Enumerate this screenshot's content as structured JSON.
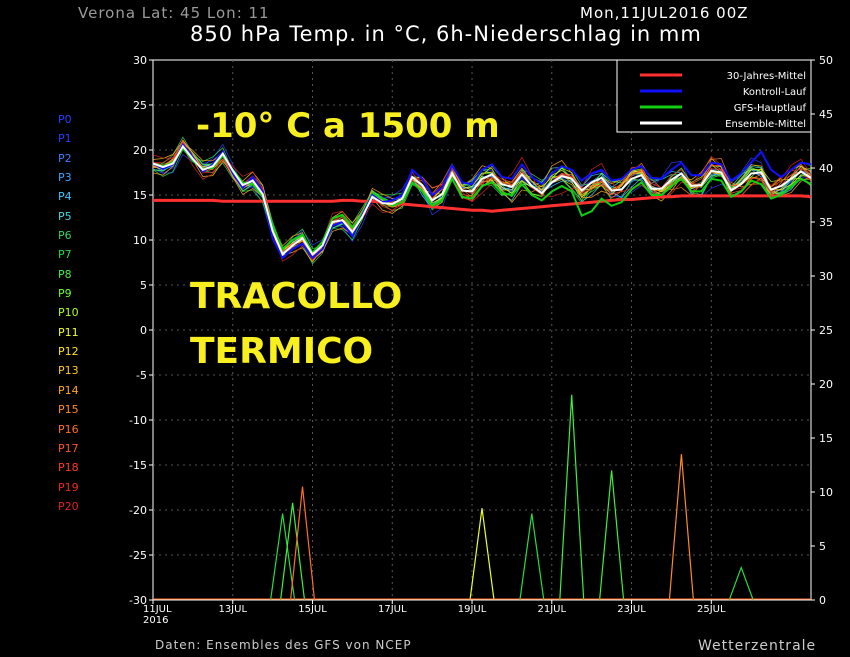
{
  "header": {
    "location": "Verona   Lat: 45 Lon: 11",
    "run": "Mon,11JUL2016 00Z",
    "title": "850 hPa Temp. in °C, 6h-Niederschlag in mm"
  },
  "footer": {
    "source": "Daten: Ensembles des GFS von NCEP",
    "credit": "Wetterzentrale"
  },
  "annotations": {
    "headline": "-10° C a 1500 m",
    "line1": "TRACOLLO",
    "line2": "TERMICO"
  },
  "members": [
    {
      "label": "P0",
      "color": "#2b3cff"
    },
    {
      "label": "P1",
      "color": "#2b3cff"
    },
    {
      "label": "P2",
      "color": "#3a7cff"
    },
    {
      "label": "P3",
      "color": "#3aa4ff"
    },
    {
      "label": "P4",
      "color": "#3ac8ff"
    },
    {
      "label": "P5",
      "color": "#49d7e0"
    },
    {
      "label": "P6",
      "color": "#32d26a"
    },
    {
      "label": "P7",
      "color": "#22dd44"
    },
    {
      "label": "P8",
      "color": "#3cf03c"
    },
    {
      "label": "P9",
      "color": "#66ff22"
    },
    {
      "label": "P10",
      "color": "#aaff22"
    },
    {
      "label": "P11",
      "color": "#eeff22"
    },
    {
      "label": "P12",
      "color": "#ffe022"
    },
    {
      "label": "P13",
      "color": "#ffc822"
    },
    {
      "label": "P14",
      "color": "#ffa822"
    },
    {
      "label": "P15",
      "color": "#ff8a22"
    },
    {
      "label": "P16",
      "color": "#ff6e22"
    },
    {
      "label": "P17",
      "color": "#ff5522"
    },
    {
      "label": "P18",
      "color": "#ff3a22"
    },
    {
      "label": "P19",
      "color": "#ee2a22"
    },
    {
      "label": "P20",
      "color": "#dd2222"
    }
  ],
  "chart_data": {
    "type": "line",
    "x_ticks": [
      "11JUL\n2016",
      "13JUL",
      "15JUL",
      "17JUL",
      "19JUL",
      "21JUL",
      "23JUL",
      "25JUL"
    ],
    "x_range_days": [
      0,
      16.5
    ],
    "left_axis": {
      "ylim": [
        -30,
        30
      ],
      "ticks": [
        30,
        25,
        20,
        15,
        10,
        5,
        0,
        -5,
        -10,
        -15,
        -20,
        -25,
        -30
      ]
    },
    "right_axis": {
      "ylim": [
        0,
        50
      ],
      "ticks": [
        50,
        45,
        40,
        35,
        30,
        25,
        20,
        15,
        10,
        5,
        0
      ]
    },
    "legend": [
      {
        "name": "30-Jahres-Mittel",
        "color": "#ff3030"
      },
      {
        "name": "Kontroll-Lauf",
        "color": "#1010ff"
      },
      {
        "name": "GFS-Hauptlauf",
        "color": "#10d010"
      },
      {
        "name": "Ensemble-Mittel",
        "color": "#ffffff"
      }
    ],
    "legend_position": "top-right",
    "series": [
      {
        "name": "30-Jahres-Mittel",
        "values": [
          14.4,
          14.4,
          14.4,
          14.4,
          14.4,
          14.4,
          14.4,
          14.3,
          14.3,
          14.3,
          14.3,
          14.3,
          14.3,
          14.3,
          14.3,
          14.3,
          14.3,
          14.3,
          14.3,
          14.4,
          14.4,
          14.3,
          14.3,
          14.2,
          14.1,
          14.0,
          13.9,
          13.8,
          13.7,
          13.6,
          13.5,
          13.4,
          13.3,
          13.3,
          13.2,
          13.3,
          13.4,
          13.5,
          13.6,
          13.7,
          13.8,
          13.9,
          14.0,
          14.1,
          14.2,
          14.3,
          14.4,
          14.5,
          14.5,
          14.6,
          14.7,
          14.8,
          14.8,
          14.9,
          14.9,
          14.9,
          14.9,
          14.9,
          14.9,
          14.9,
          14.9,
          14.9,
          14.9,
          14.9,
          14.9,
          14.9,
          14.8
        ]
      },
      {
        "name": "Ensemble-Mittel",
        "values": [
          18.5,
          18.1,
          18.5,
          20.4,
          19.0,
          17.8,
          18.2,
          19.6,
          17.7,
          16.1,
          16.6,
          15.1,
          11.0,
          8.4,
          9.4,
          10.2,
          8.4,
          9.4,
          12.0,
          12.2,
          10.9,
          12.6,
          14.8,
          14.1,
          14.0,
          14.6,
          17.0,
          16.1,
          14.4,
          15.1,
          17.4,
          15.5,
          15.4,
          16.8,
          17.3,
          16.2,
          15.9,
          17.3,
          16.0,
          15.2,
          16.4,
          17.1,
          16.8,
          15.5,
          16.4,
          16.9,
          15.5,
          15.6,
          16.8,
          17.2,
          15.7,
          15.7,
          16.7,
          17.4,
          16.0,
          16.1,
          17.7,
          17.5,
          15.5,
          16.2,
          17.4,
          17.5,
          15.6,
          16.0,
          16.8,
          17.6,
          16.9
        ]
      },
      {
        "name": "Kontroll-Lauf",
        "values": [
          18.5,
          17.9,
          18.4,
          20.6,
          19.2,
          17.6,
          18.4,
          19.8,
          17.4,
          15.8,
          17.0,
          15.4,
          10.2,
          8.0,
          9.0,
          9.6,
          8.0,
          9.0,
          11.6,
          12.0,
          10.4,
          12.8,
          15.0,
          14.2,
          14.4,
          15.0,
          17.8,
          16.8,
          15.0,
          15.8,
          18.3,
          16.4,
          16.2,
          17.8,
          18.4,
          17.0,
          16.8,
          18.4,
          17.0,
          16.2,
          17.4,
          18.2,
          17.8,
          16.6,
          17.4,
          17.8,
          16.6,
          16.8,
          17.8,
          18.2,
          16.9,
          16.8,
          17.8,
          18.6,
          17.2,
          17.2,
          18.6,
          18.4,
          16.6,
          17.4,
          18.6,
          19.8,
          17.8,
          17.0,
          17.8,
          18.6,
          18.4
        ]
      },
      {
        "name": "GFS-Hauptlauf",
        "values": [
          18.5,
          18.2,
          18.6,
          20.2,
          18.8,
          17.9,
          18.0,
          19.4,
          17.8,
          16.4,
          16.2,
          14.8,
          11.6,
          9.0,
          10.0,
          10.6,
          8.6,
          9.8,
          12.4,
          12.8,
          11.4,
          13.0,
          15.2,
          14.6,
          13.8,
          14.2,
          16.4,
          15.4,
          13.8,
          14.4,
          16.8,
          14.8,
          14.6,
          16.0,
          16.4,
          15.2,
          15.0,
          16.2,
          15.0,
          14.4,
          15.4,
          16.0,
          15.4,
          12.7,
          13.2,
          14.6,
          13.8,
          14.2,
          15.6,
          16.4,
          15.0,
          15.0,
          16.0,
          16.8,
          15.4,
          15.4,
          16.8,
          16.6,
          14.8,
          15.4,
          16.6,
          16.2,
          14.6,
          15.0,
          16.0,
          16.8,
          16.2
        ]
      }
    ],
    "precip_right_axis_peaks": [
      {
        "time_days": 3.25,
        "value": 8
      },
      {
        "time_days": 3.5,
        "value": 9
      },
      {
        "time_days": 3.75,
        "value": 10.5
      },
      {
        "time_days": 8.25,
        "value": 8.5
      },
      {
        "time_days": 9.5,
        "value": 8
      },
      {
        "time_days": 10.5,
        "value": 19
      },
      {
        "time_days": 11.5,
        "value": 12
      },
      {
        "time_days": 13.25,
        "value": 13.5
      },
      {
        "time_days": 14.75,
        "value": 3
      }
    ]
  }
}
